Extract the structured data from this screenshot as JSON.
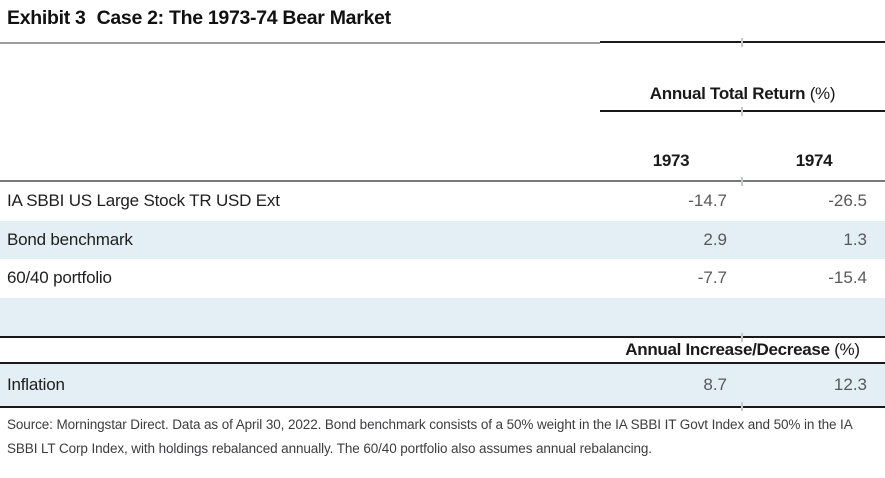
{
  "title": {
    "exhibit_label": "Exhibit 3",
    "title_text": "Case 2: The 1973-74 Bear Market"
  },
  "sections": {
    "returns": {
      "header": "Annual Total Return",
      "header_unit": "(%)",
      "columns": [
        "1973",
        "1974"
      ],
      "rows": [
        {
          "label": "IA SBBI US Large Stock TR USD Ext",
          "values": [
            "-14.7",
            "-26.5"
          ]
        },
        {
          "label": "Bond benchmark",
          "values": [
            "2.9",
            "1.3"
          ]
        },
        {
          "label": "60/40 portfolio",
          "values": [
            "-7.7",
            "-15.4"
          ]
        }
      ]
    },
    "inflation": {
      "header": "Annual Increase/Decrease",
      "header_unit": "(%)",
      "rows": [
        {
          "label": "Inflation",
          "values": [
            "8.7",
            "12.3"
          ]
        }
      ]
    }
  },
  "footer": {
    "lines": [
      "Source: Morningstar Direct. Data as of April 30, 2022. Bond benchmark consists of a 50% weight in the IA SBBI IT Govt Index and 50% in the IA",
      "SBBI LT Corp Index, with holdings rebalanced annually. The 60/40 portfolio also assumes annual rebalancing."
    ]
  },
  "colors": {
    "highlight_row": "#e4eff5",
    "rule_dark": "#1a1a1a",
    "rule_gray": "#77787a",
    "rule_light_gray": "#9c9ea0",
    "tick_gray": "#c6c8ca",
    "value_text": "#57585b",
    "label_text": "#1e1e1e"
  }
}
